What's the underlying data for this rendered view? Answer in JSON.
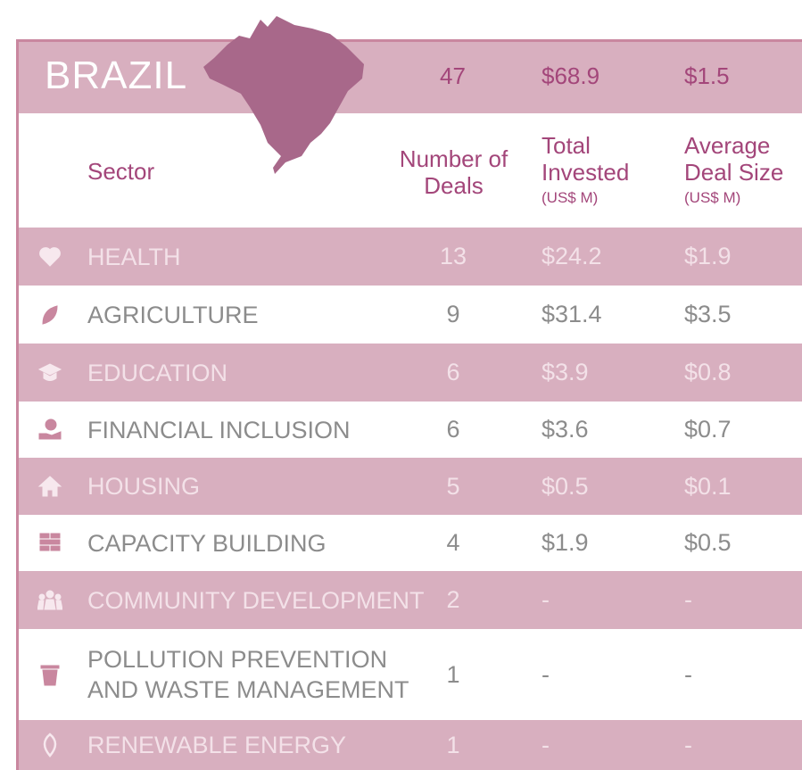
{
  "header": {
    "title": "BRAZIL",
    "deals": "47",
    "invested": "$68.9",
    "average": "$1.5"
  },
  "columns": {
    "sector": "Sector",
    "deals": "Number of Deals",
    "invested": "Total Invested",
    "invested_unit": "(US$ M)",
    "average": "Average Deal Size",
    "average_unit": "(US$ M)"
  },
  "rows": [
    {
      "sector": "HEALTH",
      "deals": "13",
      "invested": "$24.2",
      "average": "$1.9"
    },
    {
      "sector": "AGRICULTURE",
      "deals": "9",
      "invested": "$31.4",
      "average": "$3.5"
    },
    {
      "sector": "EDUCATION",
      "deals": "6",
      "invested": "$3.9",
      "average": "$0.8"
    },
    {
      "sector": "FINANCIAL INCLUSION",
      "deals": "6",
      "invested": "$3.6",
      "average": "$0.7"
    },
    {
      "sector": "HOUSING",
      "deals": "5",
      "invested": "$0.5",
      "average": "$0.1"
    },
    {
      "sector": "CAPACITY BUILDING",
      "deals": "4",
      "invested": "$1.9",
      "average": "$0.5"
    },
    {
      "sector": "COMMUNITY DEVELOPMENT",
      "deals": "2",
      "invested": "-",
      "average": "-"
    },
    {
      "sector": "POLLUTION PREVENTION AND WASTE MANAGEMENT",
      "deals": "1",
      "invested": "-",
      "average": "-"
    },
    {
      "sector": "RENEWABLE ENERGY",
      "deals": "1",
      "invested": "-",
      "average": "-"
    }
  ]
}
